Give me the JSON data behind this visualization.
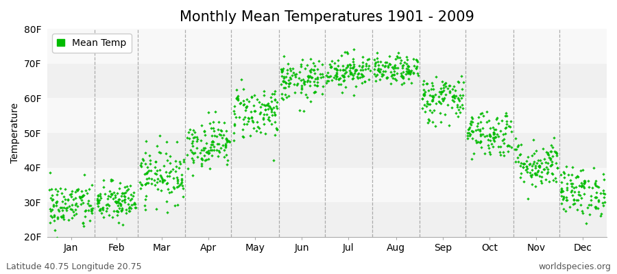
{
  "title": "Monthly Mean Temperatures 1901 - 2009",
  "ylabel": "Temperature",
  "yticks": [
    20,
    30,
    40,
    50,
    60,
    70,
    80
  ],
  "ytick_labels": [
    "20F",
    "30F",
    "40F",
    "50F",
    "60F",
    "70F",
    "80F"
  ],
  "ylim": [
    20,
    80
  ],
  "months": [
    "Jan",
    "Feb",
    "Mar",
    "Apr",
    "May",
    "Jun",
    "Jul",
    "Aug",
    "Sep",
    "Oct",
    "Nov",
    "Dec"
  ],
  "month_days": [
    31,
    28,
    31,
    30,
    31,
    30,
    31,
    31,
    30,
    31,
    30,
    31
  ],
  "xlim": [
    0,
    365
  ],
  "dot_color": "#00BB00",
  "background_color": "#ffffff",
  "band_colors": [
    "#f0f0f0",
    "#f8f8f8"
  ],
  "legend_label": "Mean Temp",
  "footer_left": "Latitude 40.75 Longitude 20.75",
  "footer_right": "worldspecies.org",
  "title_fontsize": 15,
  "axis_fontsize": 10,
  "footer_fontsize": 9,
  "monthly_means": [
    29,
    30,
    38,
    47,
    56,
    65,
    68,
    68,
    60,
    50,
    41,
    33
  ],
  "monthly_stds": [
    3.5,
    3.0,
    4.0,
    3.5,
    4.0,
    3.0,
    2.5,
    2.0,
    3.5,
    3.5,
    3.5,
    3.5
  ],
  "n_years": 109,
  "seed": 42
}
